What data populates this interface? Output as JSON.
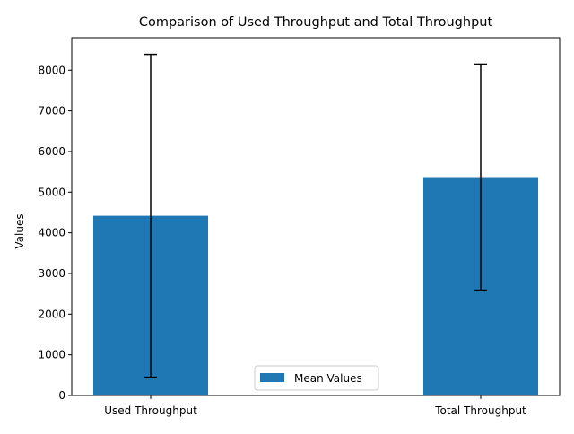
{
  "chart_data": {
    "type": "bar",
    "title": "Comparison of Used Throughput and Total Throughput",
    "xlabel": "",
    "ylabel": "Values",
    "categories": [
      "Used Throughput",
      "Total Throughput"
    ],
    "series": [
      {
        "name": "Mean Values",
        "values": [
          4420,
          5370
        ],
        "error_low": [
          450,
          2590
        ],
        "error_high": [
          8390,
          8150
        ]
      }
    ],
    "ylim": [
      0,
      8800
    ],
    "yticks": [
      0,
      1000,
      2000,
      3000,
      4000,
      5000,
      6000,
      7000,
      8000
    ],
    "grid": false,
    "legend": "lower center",
    "colors": {
      "bar": "#1f77b4",
      "error_bar": "#000000"
    }
  }
}
